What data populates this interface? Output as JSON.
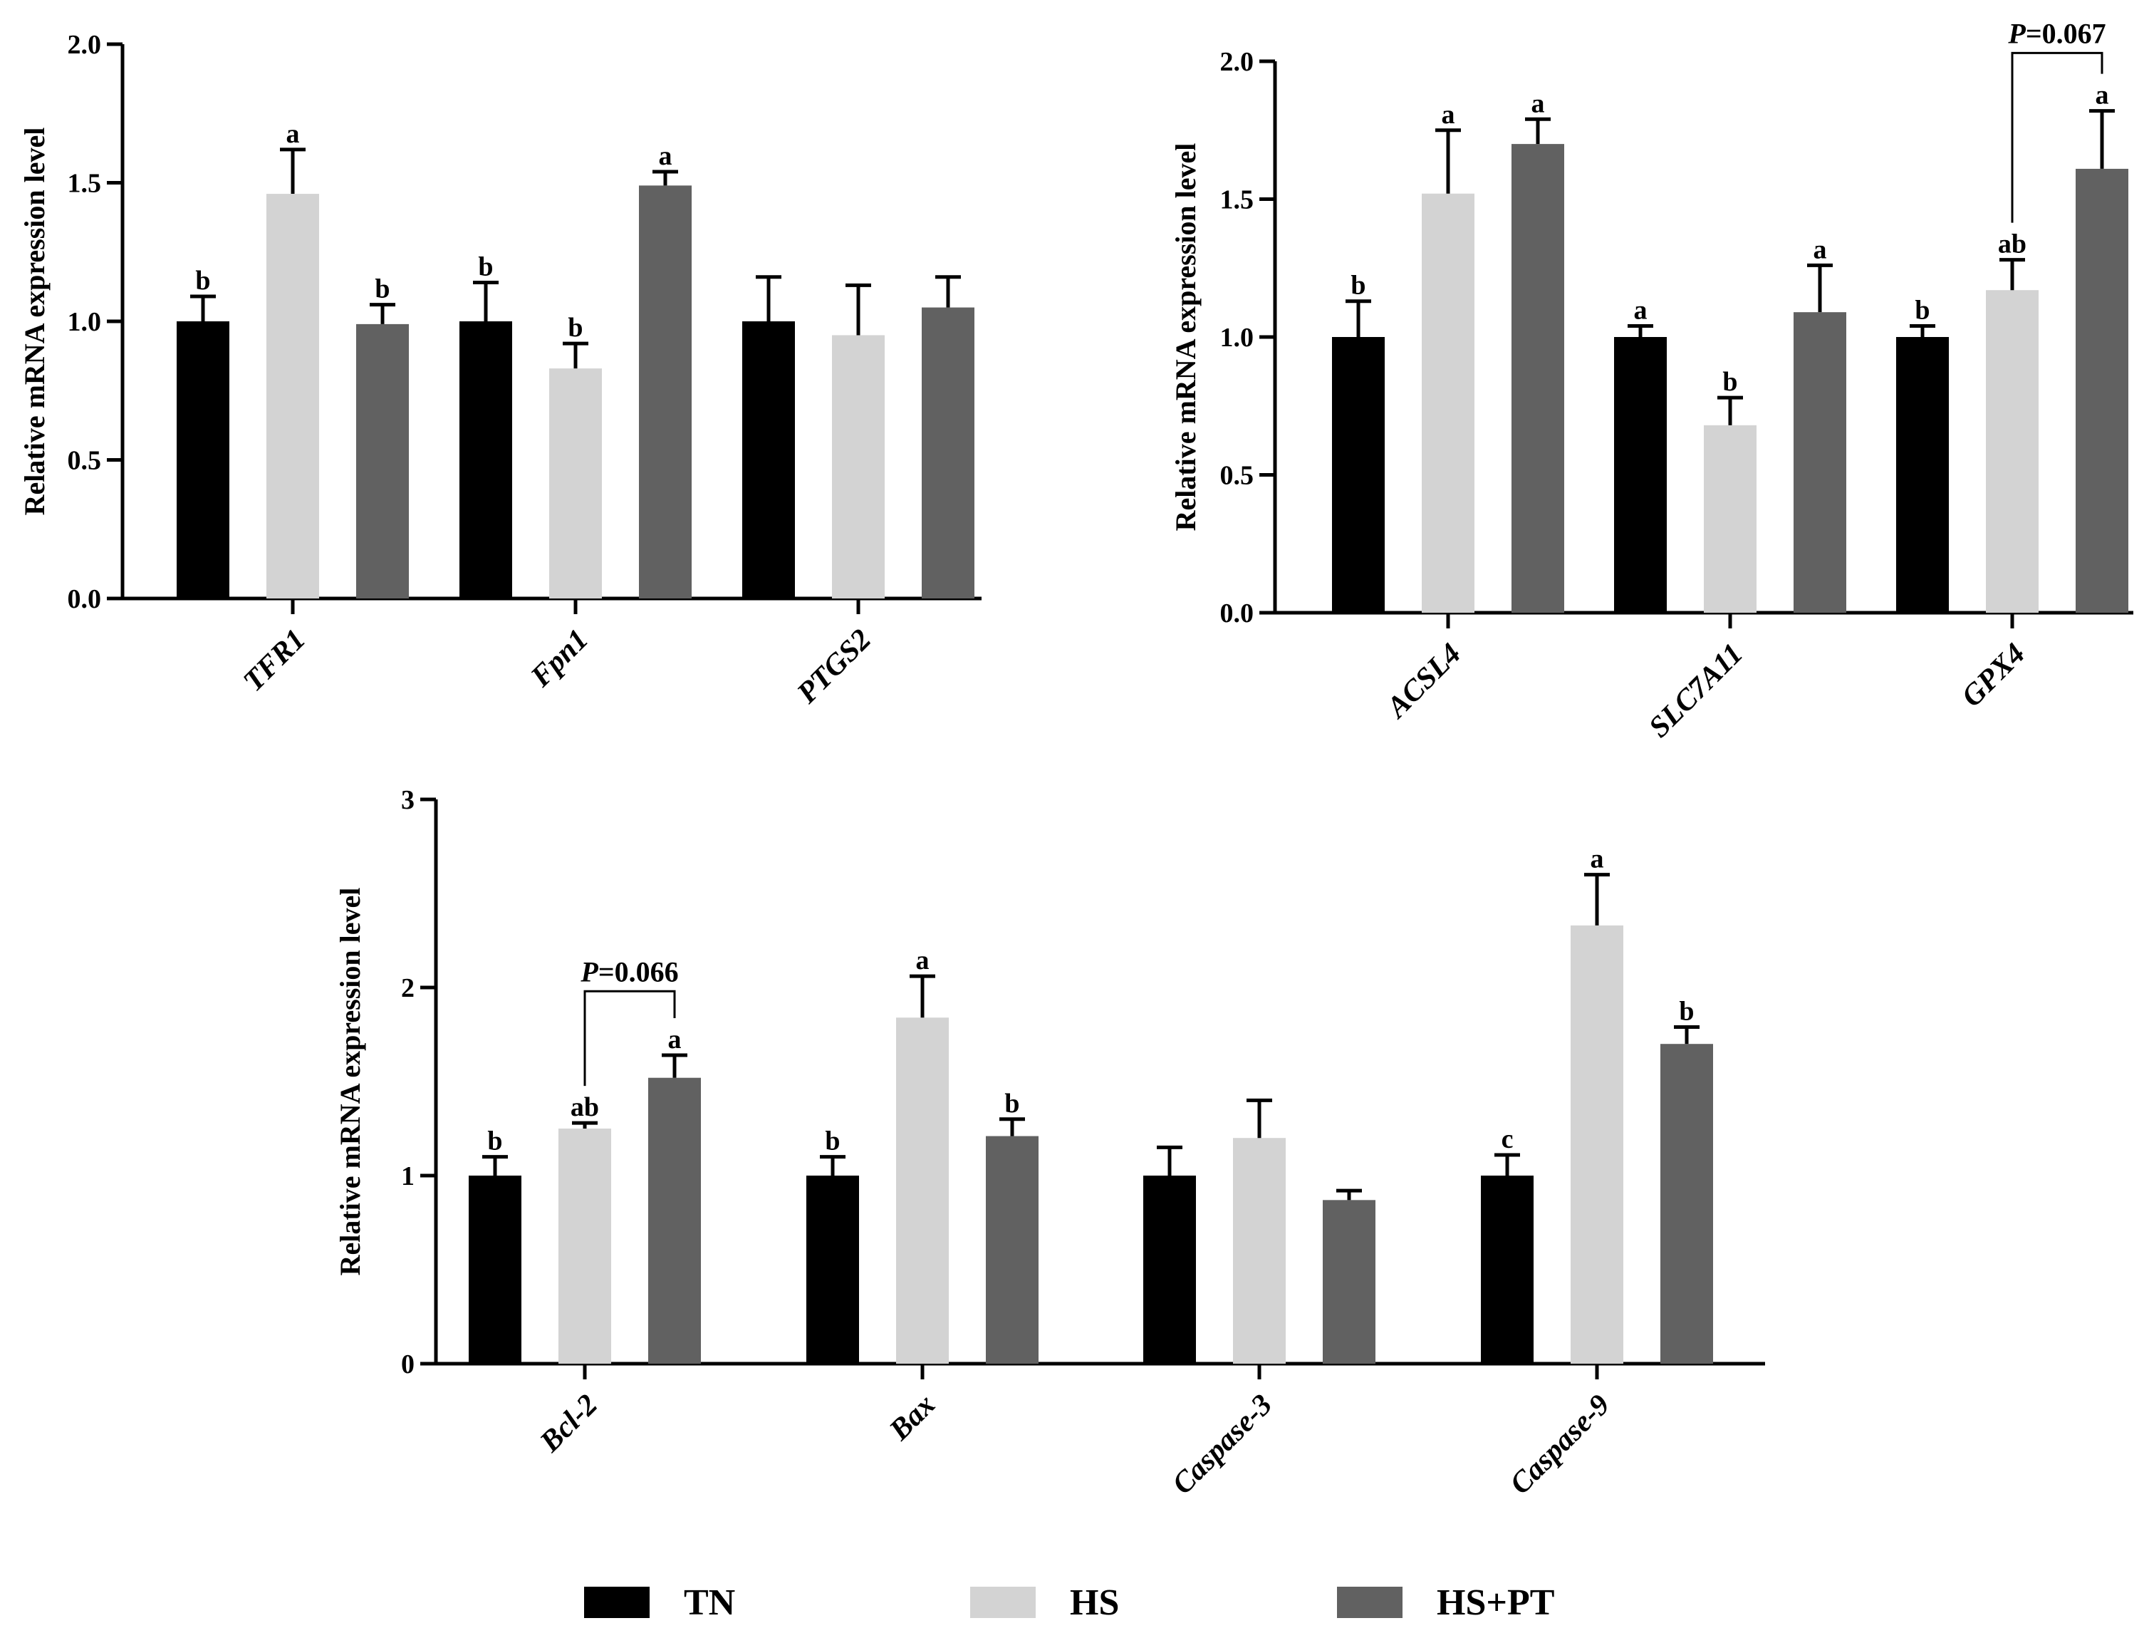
{
  "legend": {
    "items": [
      {
        "name": "TN",
        "color": "#000000"
      },
      {
        "name": "HS",
        "color": "#d3d3d3"
      },
      {
        "name": "HS+PT",
        "color": "#616161"
      }
    ]
  },
  "chart_data": [
    {
      "type": "bar",
      "title": "",
      "xlabel": "",
      "ylabel": "Relative mRNA expression level",
      "ylim": [
        0,
        2.0
      ],
      "yticks": [
        0.0,
        0.5,
        1.0,
        1.5,
        2.0
      ],
      "ytick_labels": [
        "0.0",
        "0.5",
        "1.0",
        "1.5",
        "2.0"
      ],
      "categories": [
        "TFR1",
        "Fpn1",
        "PTGS2"
      ],
      "series": [
        {
          "name": "TN",
          "values": [
            1.0,
            1.0,
            1.0
          ],
          "errors": [
            0.09,
            0.14,
            0.16
          ],
          "labels": [
            "b",
            "b",
            ""
          ]
        },
        {
          "name": "HS",
          "values": [
            1.46,
            0.83,
            0.95
          ],
          "errors": [
            0.16,
            0.09,
            0.18
          ],
          "labels": [
            "a",
            "b",
            ""
          ]
        },
        {
          "name": "HS+PT",
          "values": [
            0.99,
            1.49,
            1.05
          ],
          "errors": [
            0.07,
            0.05,
            0.11
          ],
          "labels": [
            "b",
            "a",
            ""
          ]
        }
      ],
      "annotations": []
    },
    {
      "type": "bar",
      "title": "",
      "xlabel": "",
      "ylabel": "Relative mRNA expression level",
      "ylim": [
        0,
        2.0
      ],
      "yticks": [
        0.0,
        0.5,
        1.0,
        1.5,
        2.0
      ],
      "ytick_labels": [
        "0.0",
        "0.5",
        "1.0",
        "1.5",
        "2.0"
      ],
      "categories": [
        "ACSL4",
        "SLC7A11",
        "GPX4"
      ],
      "series": [
        {
          "name": "TN",
          "values": [
            1.0,
            1.0,
            1.0
          ],
          "errors": [
            0.13,
            0.04,
            0.04
          ],
          "labels": [
            "b",
            "a",
            "b"
          ]
        },
        {
          "name": "HS",
          "values": [
            1.52,
            0.68,
            1.17
          ],
          "errors": [
            0.23,
            0.1,
            0.11
          ],
          "labels": [
            "a",
            "b",
            "ab"
          ]
        },
        {
          "name": "HS+PT",
          "values": [
            1.7,
            1.09,
            1.61
          ],
          "errors": [
            0.09,
            0.17,
            0.21
          ],
          "labels": [
            "a",
            "a",
            "a"
          ]
        }
      ],
      "annotations": [
        {
          "category": "GPX4",
          "from_series": "HS",
          "to_series": "HS+PT",
          "bracket_y": 2.03,
          "p_symbol": "P",
          "p_rest": "=0.067"
        }
      ]
    },
    {
      "type": "bar",
      "title": "",
      "xlabel": "",
      "ylabel": "Relative mRNA expression level",
      "ylim": [
        0,
        3
      ],
      "yticks": [
        0,
        1,
        2,
        3
      ],
      "ytick_labels": [
        "0",
        "1",
        "2",
        "3"
      ],
      "categories": [
        "Bcl-2",
        "Bax",
        "Caspase-3",
        "Caspase-9"
      ],
      "series": [
        {
          "name": "TN",
          "values": [
            1.0,
            1.0,
            1.0,
            1.0
          ],
          "errors": [
            0.1,
            0.1,
            0.15,
            0.11
          ],
          "labels": [
            "b",
            "b",
            "",
            "c"
          ]
        },
        {
          "name": "HS",
          "values": [
            1.25,
            1.84,
            1.2,
            2.33
          ],
          "errors": [
            0.03,
            0.22,
            0.2,
            0.27
          ],
          "labels": [
            "ab",
            "a",
            "",
            "a"
          ]
        },
        {
          "name": "HS+PT",
          "values": [
            1.52,
            1.21,
            0.87,
            1.7
          ],
          "errors": [
            0.12,
            0.09,
            0.05,
            0.09
          ],
          "labels": [
            "a",
            "b",
            "",
            "b"
          ]
        }
      ],
      "annotations": [
        {
          "category": "Bcl-2",
          "from_series": "HS",
          "to_series": "HS+PT",
          "bracket_y": 1.98,
          "p_symbol": "P",
          "p_rest": "=0.066"
        }
      ]
    }
  ]
}
